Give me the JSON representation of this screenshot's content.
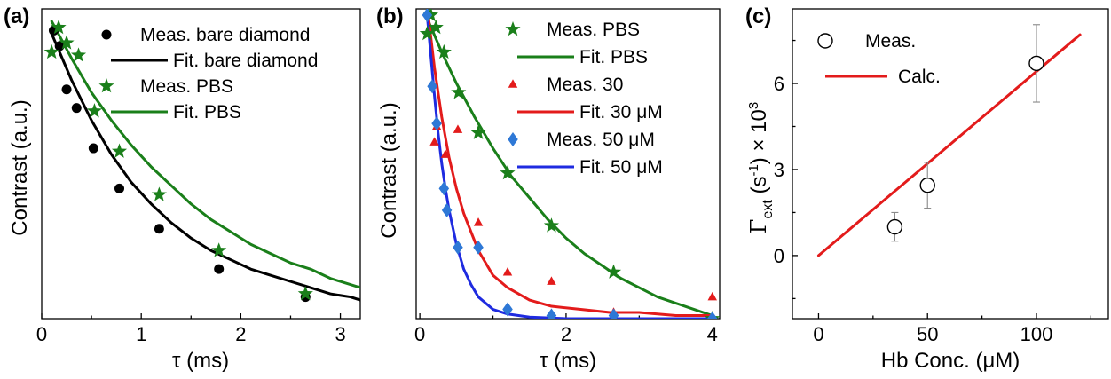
{
  "chart_data": [
    {
      "panel": "(a)",
      "type": "scatter",
      "xlabel": "τ (ms)",
      "ylabel": "Contrast (a.u.)",
      "xlim": [
        0,
        3.2
      ],
      "ylim": [
        0,
        1
      ],
      "xticks": [
        "0",
        "1",
        "2",
        "3"
      ],
      "xtick_values": [
        0,
        1,
        2,
        3
      ],
      "legend_position": "top-right",
      "series": [
        {
          "name": "Meas. bare diamond",
          "kind": "points",
          "marker": "circle",
          "color": "#000000",
          "x": [
            0.12,
            0.18,
            0.25,
            0.35,
            0.52,
            0.78,
            1.18,
            1.78,
            2.65
          ],
          "y": [
            0.93,
            0.88,
            0.74,
            0.68,
            0.55,
            0.42,
            0.29,
            0.16,
            0.07
          ]
        },
        {
          "name": "Fit. bare diamond",
          "kind": "curve",
          "color": "#000000",
          "x": [
            0.1,
            0.3,
            0.5,
            0.7,
            0.9,
            1.1,
            1.3,
            1.5,
            1.7,
            1.9,
            2.1,
            2.3,
            2.5,
            2.7,
            2.9,
            3.1,
            3.2
          ],
          "y": [
            0.92,
            0.77,
            0.64,
            0.53,
            0.44,
            0.37,
            0.31,
            0.26,
            0.22,
            0.19,
            0.16,
            0.14,
            0.12,
            0.1,
            0.08,
            0.07,
            0.06
          ]
        },
        {
          "name": "Meas. PBS",
          "kind": "points",
          "marker": "star",
          "color": "#1a7f1a",
          "x": [
            0.1,
            0.17,
            0.25,
            0.37,
            0.53,
            0.78,
            1.18,
            1.78,
            2.65
          ],
          "y": [
            0.86,
            0.94,
            0.89,
            0.85,
            0.67,
            0.54,
            0.4,
            0.22,
            0.08
          ]
        },
        {
          "name": "Fit. PBS",
          "kind": "curve",
          "color": "#1a7f1a",
          "x": [
            0.1,
            0.3,
            0.5,
            0.7,
            0.9,
            1.1,
            1.3,
            1.5,
            1.7,
            1.9,
            2.1,
            2.3,
            2.5,
            2.7,
            2.9,
            3.1,
            3.2
          ],
          "y": [
            0.96,
            0.84,
            0.73,
            0.64,
            0.56,
            0.49,
            0.43,
            0.37,
            0.32,
            0.28,
            0.24,
            0.21,
            0.18,
            0.16,
            0.13,
            0.11,
            0.1
          ]
        }
      ]
    },
    {
      "panel": "(b)",
      "type": "scatter",
      "xlabel": "τ (ms)",
      "ylabel": "Contrast (a.u.)",
      "xlim": [
        -0.05,
        4.1
      ],
      "ylim": [
        0,
        1
      ],
      "xticks": [
        "0",
        "2",
        "4"
      ],
      "xtick_values": [
        0,
        2,
        4
      ],
      "legend_position": "top-right",
      "series": [
        {
          "name": "Meas. PBS",
          "kind": "points",
          "marker": "star",
          "color": "#1a7f1a",
          "x": [
            0.1,
            0.15,
            0.22,
            0.33,
            0.53,
            0.8,
            1.2,
            1.8,
            2.65,
            4.0
          ],
          "y": [
            0.92,
            0.98,
            0.94,
            0.86,
            0.73,
            0.6,
            0.47,
            0.3,
            0.15,
            0.0
          ]
        },
        {
          "name": "Fit. PBS",
          "kind": "curve",
          "color": "#1a7f1a",
          "x": [
            0.1,
            0.3,
            0.5,
            0.75,
            1.0,
            1.25,
            1.5,
            1.75,
            2.0,
            2.25,
            2.5,
            2.75,
            3.0,
            3.25,
            3.5,
            3.75,
            4.0
          ],
          "y": [
            0.97,
            0.86,
            0.76,
            0.65,
            0.55,
            0.46,
            0.39,
            0.32,
            0.26,
            0.21,
            0.17,
            0.13,
            0.1,
            0.07,
            0.05,
            0.03,
            0.01
          ]
        },
        {
          "name": "Meas. 30",
          "kind": "points",
          "marker": "triangle",
          "color": "#e31b1b",
          "x": [
            0.2,
            0.23,
            0.35,
            0.52,
            0.8,
            1.2,
            1.8,
            2.65,
            4.0
          ],
          "y": [
            0.57,
            0.62,
            0.53,
            0.61,
            0.31,
            0.15,
            0.12,
            0.02,
            0.07
          ]
        },
        {
          "name": "Fit. 30 μM",
          "kind": "curve",
          "color": "#e31b1b",
          "x": [
            0.12,
            0.2,
            0.3,
            0.4,
            0.5,
            0.6,
            0.8,
            1.0,
            1.2,
            1.5,
            1.8,
            2.2,
            2.6,
            3.0,
            3.5,
            4.0
          ],
          "y": [
            0.97,
            0.81,
            0.65,
            0.52,
            0.42,
            0.34,
            0.22,
            0.14,
            0.1,
            0.06,
            0.04,
            0.03,
            0.02,
            0.02,
            0.01,
            0.01
          ]
        },
        {
          "name": "Meas. 50 μM",
          "kind": "points",
          "marker": "diamond",
          "color": "#2e78d6",
          "x": [
            0.1,
            0.17,
            0.23,
            0.33,
            0.37,
            0.52,
            0.8,
            1.2,
            1.8,
            2.65,
            4.0
          ],
          "y": [
            0.98,
            0.75,
            0.63,
            0.42,
            0.35,
            0.23,
            0.23,
            0.03,
            0.01,
            0.01,
            0.0
          ]
        },
        {
          "name": "Fit. 50 μM",
          "kind": "curve",
          "color": "#1f2be0",
          "x": [
            0.1,
            0.15,
            0.2,
            0.25,
            0.3,
            0.35,
            0.4,
            0.5,
            0.6,
            0.7,
            0.8,
            1.0,
            1.2,
            1.5,
            2.0,
            2.5,
            3.0,
            4.0
          ],
          "y": [
            0.98,
            0.85,
            0.72,
            0.6,
            0.5,
            0.42,
            0.35,
            0.24,
            0.16,
            0.11,
            0.07,
            0.03,
            0.015,
            0.005,
            0.0,
            0.0,
            0.0,
            0.0
          ]
        }
      ]
    },
    {
      "panel": "(c)",
      "type": "scatter",
      "xlabel": "Hb Conc. (μM)",
      "ylabel": "Γext (s-1) × 10^3",
      "ylabel_parts": {
        "gamma": "Γ",
        "ext": "ext",
        "open": " (s",
        "exp": "-1",
        "close": ") × 10",
        "pow": "3"
      },
      "xlim": [
        -12,
        133
      ],
      "ylim": [
        -2.2,
        8.6
      ],
      "xticks": [
        "0",
        "50",
        "100"
      ],
      "xtick_values": [
        0,
        50,
        100
      ],
      "yticks": [
        "0",
        "3",
        "6"
      ],
      "ytick_values": [
        0,
        3,
        6
      ],
      "legend_position": "top-left",
      "series": [
        {
          "name": "Meas.",
          "kind": "points",
          "marker": "open-circle",
          "color": "#000000",
          "x": [
            35,
            50,
            100
          ],
          "y": [
            1.0,
            2.45,
            6.7
          ],
          "yerr": [
            0.5,
            0.8,
            1.35
          ]
        },
        {
          "name": "Calc.",
          "kind": "curve",
          "color": "#e31b1b",
          "x": [
            0,
            120
          ],
          "y": [
            0.0,
            7.7
          ]
        }
      ]
    }
  ]
}
